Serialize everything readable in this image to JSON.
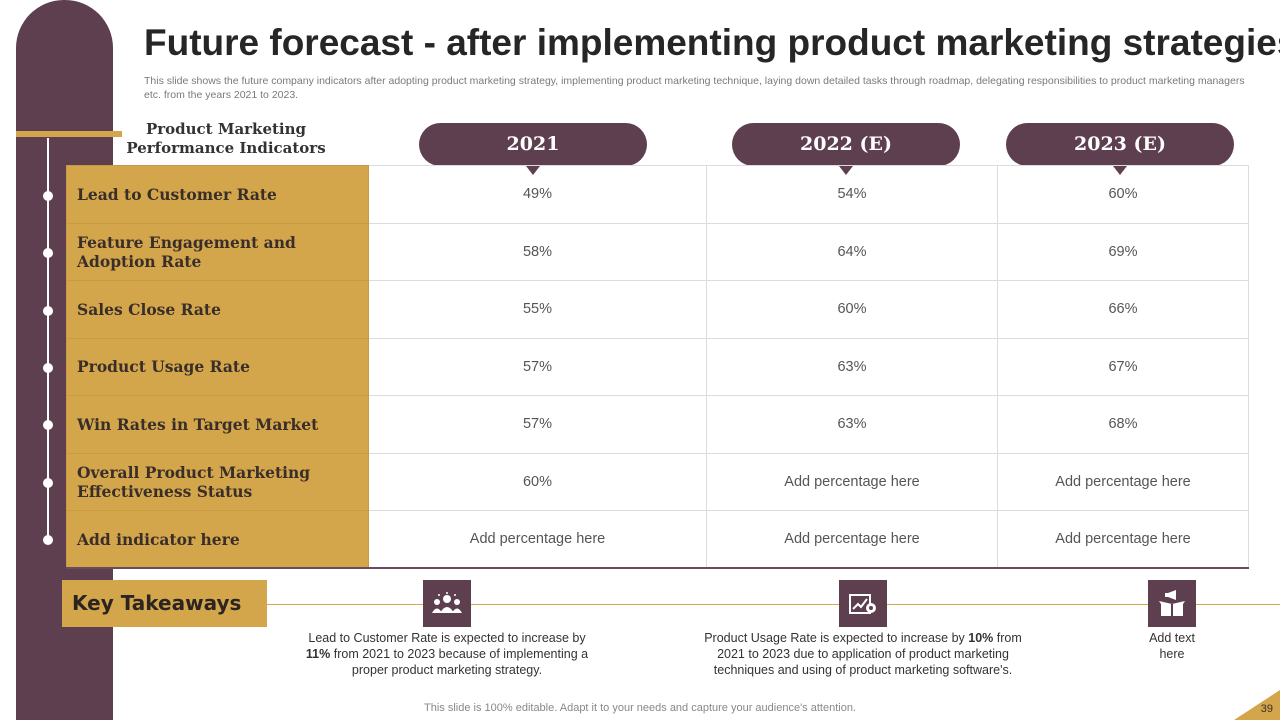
{
  "slide": {
    "title": "Future forecast - after implementing product marketing strategies",
    "subtitle": "This slide shows the future company indicators after adopting product marketing strategy, implementing product marketing technique, laying down detailed tasks through roadmap, delegating responsibilities to product marketing managers etc. from the years 2021 to 2023."
  },
  "table": {
    "indicator_heading": "Product Marketing Performance Indicators",
    "years": [
      "2021",
      "2022 (E)",
      "2023 (E)"
    ],
    "rows": [
      {
        "label": "Lead to Customer Rate",
        "values": [
          "49%",
          "54%",
          "60%"
        ]
      },
      {
        "label": "Feature Engagement and Adoption Rate",
        "values": [
          "58%",
          "64%",
          "69%"
        ]
      },
      {
        "label": "Sales Close Rate",
        "values": [
          "55%",
          "60%",
          "66%"
        ]
      },
      {
        "label": "Product Usage Rate",
        "values": [
          "57%",
          "63%",
          "67%"
        ]
      },
      {
        "label": "Win Rates in Target Market",
        "values": [
          "57%",
          "63%",
          "68%"
        ]
      },
      {
        "label": "Overall Product Marketing Effectiveness Status",
        "values": [
          "60%",
          "Add percentage here",
          "Add percentage here"
        ]
      },
      {
        "label": "Add indicator here",
        "values": [
          "Add percentage here",
          "Add percentage here",
          "Add percentage here"
        ]
      }
    ]
  },
  "takeaways": {
    "heading": "Key Takeaways",
    "items": [
      {
        "icon": "team-icon",
        "pre": "Lead to Customer Rate is expected to increase by ",
        "highlight": "11%",
        "post": " from 2021 to 2023 because of implementing a proper product marketing strategy."
      },
      {
        "icon": "growth-chart-icon",
        "pre": "Product Usage Rate is expected to increase by ",
        "highlight": "10%",
        "post": " from 2021 to 2023 due to application of product marketing techniques and using of product marketing software's."
      },
      {
        "icon": "megaphone-box-icon",
        "pre": "Add text here",
        "highlight": "",
        "post": ""
      }
    ]
  },
  "footer": {
    "note": "This slide is 100% editable. Adapt it to your needs and capture your audience's attention.",
    "page_number": "39"
  },
  "colors": {
    "plum": "#5e3f50",
    "gold": "#d4a64b"
  }
}
